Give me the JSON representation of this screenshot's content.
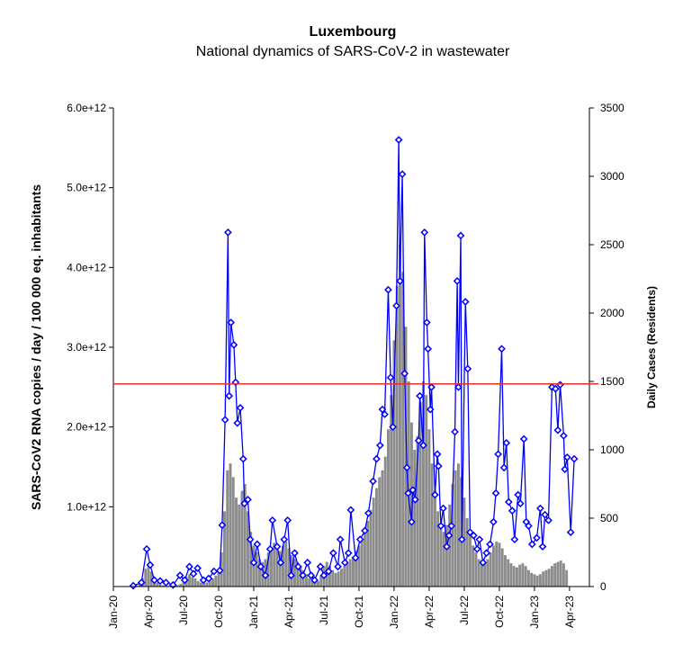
{
  "chart_data": {
    "type": "combo",
    "title": "Luxembourg",
    "subtitle": "National dynamics of SARS-CoV-2 in wastewater",
    "ylabel": "SARS-CoV2 RNA copies / day  / 100 000 eq. inhabitants",
    "y2label": "Daily Cases (Residents)",
    "xlim": [
      0,
      40.7
    ],
    "xticks": [
      {
        "value": 0,
        "label": "Jan-20"
      },
      {
        "value": 3,
        "label": "Apr-20"
      },
      {
        "value": 6,
        "label": "Jul-20"
      },
      {
        "value": 9,
        "label": "Oct-20"
      },
      {
        "value": 12,
        "label": "Jan-21"
      },
      {
        "value": 15,
        "label": "Apr-21"
      },
      {
        "value": 18,
        "label": "Jul-21"
      },
      {
        "value": 21,
        "label": "Oct-21"
      },
      {
        "value": 24,
        "label": "Jan-22"
      },
      {
        "value": 27,
        "label": "Apr-22"
      },
      {
        "value": 30,
        "label": "Jul-22"
      },
      {
        "value": 33,
        "label": "Oct-22"
      },
      {
        "value": 36,
        "label": "Jan-23"
      },
      {
        "value": 39,
        "label": "Apr-23"
      }
    ],
    "ylim": [
      0,
      6000000000000.0
    ],
    "yticks": [
      {
        "value": 1000000000000.0,
        "label": "1.0e+12"
      },
      {
        "value": 2000000000000.0,
        "label": "2.0e+12"
      },
      {
        "value": 3000000000000.0,
        "label": "3.0e+12"
      },
      {
        "value": 4000000000000.0,
        "label": "4.0e+12"
      },
      {
        "value": 5000000000000.0,
        "label": "5.0e+12"
      },
      {
        "value": 6000000000000.0,
        "label": "6.0e+12"
      }
    ],
    "y2lim": [
      0,
      3500
    ],
    "y2ticks": [
      0,
      500,
      1000,
      1500,
      2000,
      2500,
      3000,
      3500
    ],
    "reference_line": {
      "value": 2540000000000.0,
      "color": "#e03333"
    },
    "series": [
      {
        "type": "bar",
        "axis": "y2",
        "color": "#8c8c8c",
        "x": [
          2,
          2.25,
          2.5,
          2.75,
          3,
          3.25,
          3.5,
          3.75,
          4,
          4.25,
          4.5,
          4.75,
          5,
          5.25,
          5.5,
          5.75,
          6,
          6.25,
          6.5,
          6.75,
          7,
          7.25,
          7.5,
          7.75,
          8,
          8.25,
          8.5,
          8.75,
          9,
          9.25,
          9.5,
          9.75,
          10,
          10.25,
          10.5,
          10.75,
          11,
          11.25,
          11.5,
          11.75,
          12,
          12.25,
          12.5,
          12.75,
          13,
          13.25,
          13.5,
          13.75,
          14,
          14.25,
          14.5,
          14.75,
          15,
          15.25,
          15.5,
          15.75,
          16,
          16.25,
          16.5,
          16.75,
          17,
          17.25,
          17.5,
          17.75,
          18,
          18.25,
          18.5,
          18.75,
          19,
          19.25,
          19.5,
          19.75,
          20,
          20.25,
          20.5,
          20.75,
          21,
          21.25,
          21.5,
          21.75,
          22,
          22.25,
          22.5,
          22.75,
          23,
          23.25,
          23.5,
          23.75,
          24,
          24.25,
          24.5,
          24.75,
          25,
          25.25,
          25.5,
          25.75,
          26,
          26.25,
          26.5,
          26.75,
          27,
          27.25,
          27.5,
          27.75,
          28,
          28.25,
          28.5,
          28.75,
          29,
          29.25,
          29.5,
          29.75,
          30,
          30.25,
          30.5,
          30.75,
          31,
          31.25,
          31.5,
          31.75,
          32,
          32.25,
          32.5,
          32.75,
          33,
          33.25,
          33.5,
          33.75,
          34,
          34.25,
          34.5,
          34.75,
          35,
          35.25,
          35.5,
          35.75,
          36,
          36.25,
          36.5,
          36.75,
          37,
          37.25,
          37.5,
          37.75,
          38,
          38.25,
          38.5,
          38.75
        ],
        "values": [
          5,
          20,
          60,
          130,
          160,
          110,
          60,
          30,
          15,
          10,
          8,
          5,
          5,
          5,
          10,
          20,
          40,
          70,
          90,
          70,
          60,
          40,
          30,
          25,
          30,
          40,
          60,
          80,
          120,
          250,
          550,
          850,
          900,
          800,
          650,
          600,
          700,
          750,
          550,
          400,
          300,
          250,
          200,
          180,
          200,
          250,
          280,
          320,
          300,
          260,
          300,
          330,
          280,
          230,
          200,
          180,
          150,
          120,
          90,
          60,
          40,
          30,
          40,
          80,
          150,
          180,
          150,
          120,
          100,
          110,
          130,
          150,
          170,
          200,
          220,
          260,
          300,
          350,
          420,
          480,
          560,
          650,
          720,
          800,
          850,
          950,
          1150,
          1400,
          1800,
          2200,
          2500,
          2300,
          1900,
          1500,
          1200,
          1000,
          1100,
          1350,
          1500,
          1400,
          1150,
          900,
          700,
          550,
          450,
          400,
          450,
          600,
          750,
          850,
          900,
          800,
          650,
          500,
          380,
          300,
          250,
          200,
          180,
          170,
          200,
          250,
          300,
          330,
          320,
          280,
          230,
          200,
          170,
          150,
          140,
          160,
          170,
          150,
          120,
          100,
          90,
          80,
          90,
          110,
          120,
          130,
          150,
          170,
          180,
          190,
          170,
          120
        ]
      },
      {
        "type": "line",
        "color": "#0000ff",
        "x": [
          1.7,
          2.4,
          2.85,
          3.15,
          3.5,
          4.0,
          4.5,
          5.1,
          5.7,
          6.1,
          6.5,
          6.85,
          7.2,
          7.7,
          8.15,
          8.6,
          9.1,
          9.3,
          9.55,
          9.8,
          9.9,
          10.05,
          10.3,
          10.45,
          10.6,
          10.85,
          11.1,
          11.2,
          11.5,
          11.7,
          12.0,
          12.3,
          12.6,
          13.0,
          13.4,
          13.6,
          14.0,
          14.3,
          14.6,
          14.9,
          15.2,
          15.5,
          15.8,
          16.2,
          16.6,
          16.9,
          17.2,
          17.7,
          18.0,
          18.4,
          18.8,
          19.2,
          19.4,
          19.8,
          20.1,
          20.3,
          20.7,
          21.1,
          21.5,
          21.8,
          22.2,
          22.5,
          22.8,
          23.0,
          23.2,
          23.5,
          23.7,
          23.9,
          24.2,
          24.4,
          24.5,
          24.7,
          24.9,
          25.1,
          25.2,
          25.5,
          25.6,
          25.8,
          26.1,
          26.2,
          26.5,
          26.6,
          26.8,
          26.9,
          27.1,
          27.2,
          27.5,
          27.7,
          27.8,
          28.0,
          28.2,
          28.5,
          28.7,
          28.9,
          29.2,
          29.4,
          29.5,
          29.7,
          29.8,
          30.1,
          30.3,
          30.5,
          30.8,
          31.1,
          31.3,
          31.6,
          31.9,
          32.2,
          32.5,
          32.7,
          32.9,
          33.2,
          33.4,
          33.6,
          33.8,
          34.1,
          34.3,
          34.6,
          34.8,
          35.1,
          35.3,
          35.5,
          35.8,
          36.2,
          36.5,
          36.7,
          36.9,
          37.2,
          37.5,
          37.8,
          38.0,
          38.2,
          38.5,
          38.6,
          38.8,
          39.1,
          39.4
        ],
        "values": [
          10000000000.0,
          50000000000.0,
          470000000000.0,
          270000000000.0,
          80000000000.0,
          70000000000.0,
          50000000000.0,
          20000000000.0,
          140000000000.0,
          80000000000.0,
          250000000000.0,
          160000000000.0,
          230000000000.0,
          80000000000.0,
          100000000000.0,
          190000000000.0,
          200000000000.0,
          770000000000.0,
          2090000000000.0,
          4440000000000.0,
          2390000000000.0,
          3310000000000.0,
          3030000000000.0,
          2560000000000.0,
          2050000000000.0,
          2240000000000.0,
          1600000000000.0,
          1040000000000.0,
          1090000000000.0,
          590000000000.0,
          300000000000.0,
          530000000000.0,
          250000000000.0,
          140000000000.0,
          470000000000.0,
          830000000000.0,
          500000000000.0,
          300000000000.0,
          590000000000.0,
          830000000000.0,
          140000000000.0,
          420000000000.0,
          250000000000.0,
          140000000000.0,
          300000000000.0,
          140000000000.0,
          80000000000.0,
          250000000000.0,
          140000000000.0,
          190000000000.0,
          420000000000.0,
          250000000000.0,
          590000000000.0,
          300000000000.0,
          420000000000.0,
          960000000000.0,
          360000000000.0,
          590000000000.0,
          700000000000.0,
          920000000000.0,
          1320000000000.0,
          1600000000000.0,
          1770000000000.0,
          2220000000000.0,
          2160000000000.0,
          3720000000000.0,
          2620000000000.0,
          2000000000000.0,
          3520000000000.0,
          5600000000000.0,
          3830000000000.0,
          5170000000000.0,
          2670000000000.0,
          1490000000000.0,
          1170000000000.0,
          810000000000.0,
          1210000000000.0,
          1090000000000.0,
          1830000000000.0,
          2390000000000.0,
          1770000000000.0,
          4440000000000.0,
          3310000000000.0,
          2980000000000.0,
          2220000000000.0,
          2500000000000.0,
          1150000000000.0,
          1660000000000.0,
          1510000000000.0,
          760000000000.0,
          980000000000.0,
          500000000000.0,
          640000000000.0,
          760000000000.0,
          1940000000000.0,
          3830000000000.0,
          2500000000000.0,
          4400000000000.0,
          590000000000.0,
          3570000000000.0,
          2730000000000.0,
          680000000000.0,
          640000000000.0,
          470000000000.0,
          590000000000.0,
          300000000000.0,
          420000000000.0,
          530000000000.0,
          810000000000.0,
          1170000000000.0,
          1660000000000.0,
          2980000000000.0,
          1490000000000.0,
          1800000000000.0,
          1060000000000.0,
          950000000000.0,
          590000000000.0,
          1150000000000.0,
          1040000000000.0,
          1850000000000.0,
          810000000000.0,
          760000000000.0,
          530000000000.0,
          610000000000.0,
          980000000000.0,
          500000000000.0,
          900000000000.0,
          830000000000.0,
          2500000000000.0,
          2480000000000.0,
          1960000000000.0,
          2530000000000.0,
          1890000000000.0,
          1470000000000.0,
          1620000000000.0,
          680000000000.0,
          1600000000000.0
        ]
      }
    ]
  }
}
